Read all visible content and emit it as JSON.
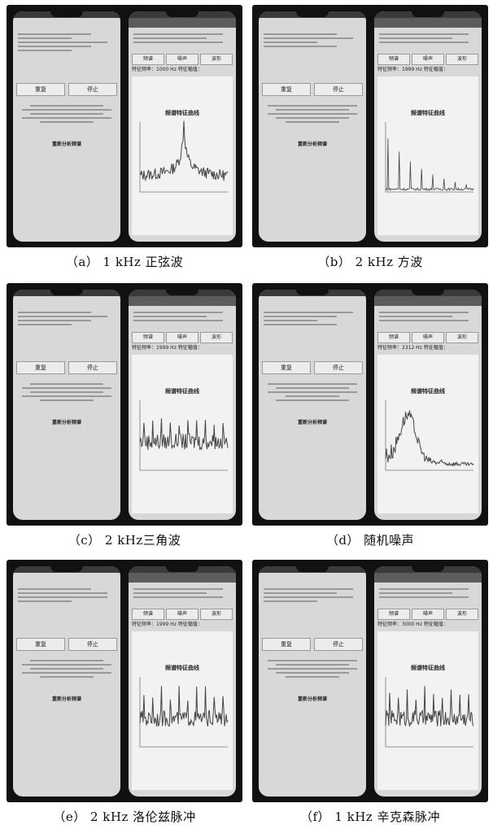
{
  "panels": [
    {
      "caption": "（a） 1 kHz 正弦波",
      "plot_title": "频谱特征曲线",
      "spectrum": "sine",
      "buttons": [
        "重复",
        "停止"
      ],
      "tabs": [
        "频谱",
        "噪声",
        "波形"
      ],
      "freq_text": "特征频率：1000 Hz  特征幅值：",
      "link": "重新分析频谱"
    },
    {
      "caption": "（b） 2 kHz 方波",
      "plot_title": "频谱特征曲线",
      "spectrum": "square",
      "buttons": [
        "重复",
        "停止"
      ],
      "tabs": [
        "频谱",
        "噪声",
        "波形"
      ],
      "freq_text": "特征频率：1999 Hz  特征幅值：",
      "link": "重新分析频谱"
    },
    {
      "caption": "（c） 2 kHz三角波",
      "plot_title": "频谱特征曲线",
      "spectrum": "triangle",
      "buttons": [
        "重复",
        "停止"
      ],
      "tabs": [
        "频谱",
        "噪声",
        "波形"
      ],
      "freq_text": "特征频率：1999 Hz  特征幅值：",
      "link": "重新分析频谱"
    },
    {
      "caption": "（d） 随机噪声",
      "plot_title": "频谱特征曲线",
      "spectrum": "noise",
      "buttons": [
        "重复",
        "停止"
      ],
      "tabs": [
        "频谱",
        "噪声",
        "波形"
      ],
      "freq_text": "特征频率：2312 Hz  特征幅值：",
      "link": "重新分析频谱"
    },
    {
      "caption": "（e） 2 kHz 洛伦兹脉冲",
      "plot_title": "频谱特征曲线",
      "spectrum": "lorentz",
      "buttons": [
        "重复",
        "停止"
      ],
      "tabs": [
        "频谱",
        "噪声",
        "波形"
      ],
      "freq_text": "特征频率：1999 Hz  特征幅值：",
      "link": "重新分析频谱"
    },
    {
      "caption": "（f） 1 kHz 辛克森脉冲",
      "plot_title": "频谱特征曲线",
      "spectrum": "sinc",
      "buttons": [
        "重复",
        "停止"
      ],
      "tabs": [
        "频谱",
        "噪声",
        "波形"
      ],
      "freq_text": "特征频率：3000 Hz  特征幅值：",
      "link": "重新分析频谱"
    }
  ],
  "colors": {
    "photo_bg": "#111111",
    "phone_screen": "#d8d8d8",
    "plot_line": "#444444"
  }
}
